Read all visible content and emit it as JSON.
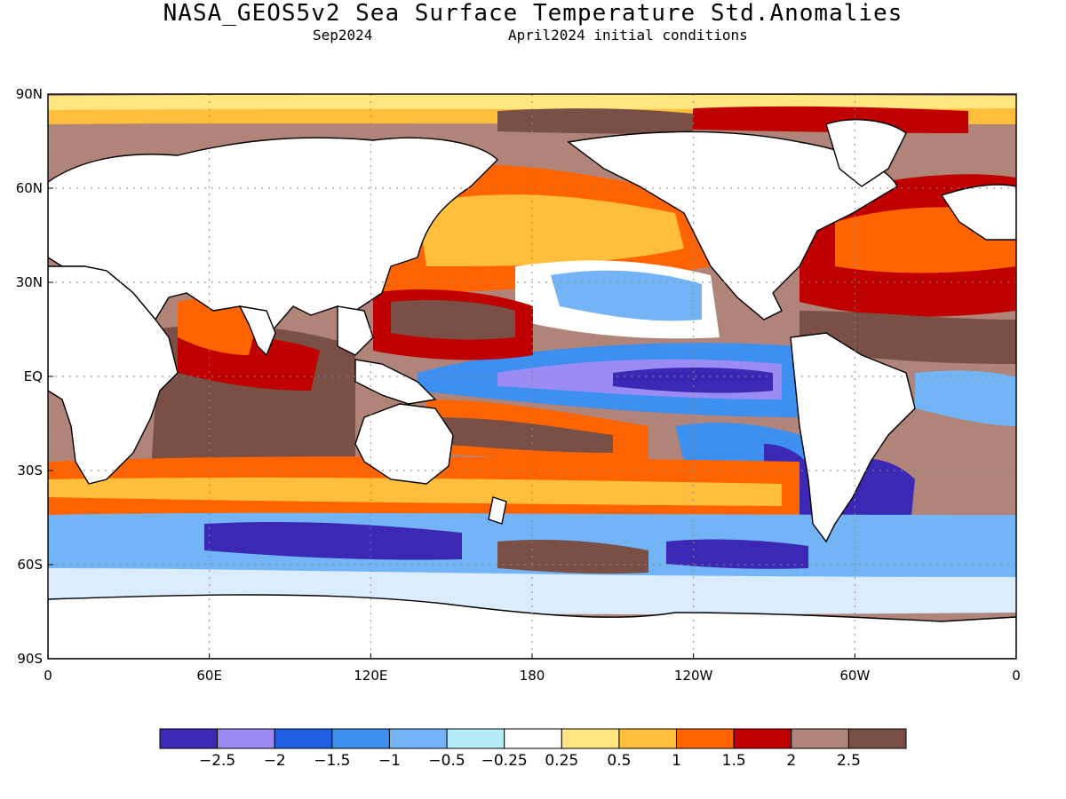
{
  "header": {
    "title": "NASA_GEOS5v2 Sea Surface Temperature Std.Anomalies",
    "subtitle_left": "Sep2024",
    "subtitle_right": "April2024 initial conditions"
  },
  "axes": {
    "lat_labels": [
      "90N",
      "60N",
      "30N",
      "EQ",
      "30S",
      "60S",
      "90S"
    ],
    "lon_labels": [
      "0",
      "60E",
      "120E",
      "180",
      "120W",
      "60W",
      "0"
    ],
    "lat_range": [
      -90,
      90
    ],
    "lon_range": [
      0,
      360
    ],
    "grid": true
  },
  "colorbar": {
    "colors": [
      "#3b28b4",
      "#9b8cf5",
      "#1f5fe0",
      "#3d8ff0",
      "#72b4f6",
      "#b4ecfa",
      "#ffffff",
      "#ffe680",
      "#ffbe3c",
      "#ff6400",
      "#c00000",
      "#b08478",
      "#7a5046"
    ],
    "labels": [
      "-2.5",
      "-2",
      "-1.5",
      "-1",
      "-0.5",
      "-0.25",
      "0.25",
      "0.5",
      "1",
      "1.5",
      "2",
      "2.5"
    ]
  },
  "regions": [
    {
      "name": "equatorial-pacific-cold-tongue",
      "color": "#3d8ff0"
    },
    {
      "name": "equatorial-pacific-core",
      "color": "#9b8cf5"
    },
    {
      "name": "north-pacific-warm",
      "color": "#ff6400"
    },
    {
      "name": "north-atlantic-warm",
      "color": "#c00000"
    },
    {
      "name": "southern-ocean-mixed",
      "color": "#72b4f6"
    },
    {
      "name": "south-atlantic-cold",
      "color": "#3b28b4"
    },
    {
      "name": "arctic-fringe-warm",
      "color": "#ffbe3c"
    },
    {
      "name": "indian-ocean-warm",
      "color": "#7a5046"
    }
  ]
}
